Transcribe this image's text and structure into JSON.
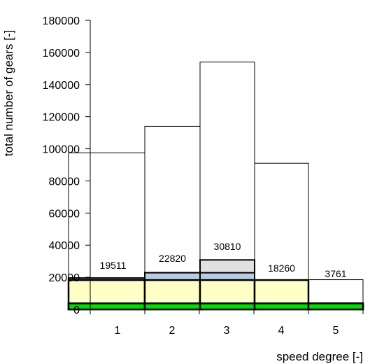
{
  "chart_data": {
    "type": "bar",
    "xlabel": "speed degree [-]",
    "ylabel": "total number of gears [-]",
    "ylim": [
      0,
      180000
    ],
    "y_ticks": [
      0,
      20000,
      40000,
      60000,
      80000,
      100000,
      120000,
      140000,
      160000,
      180000
    ],
    "categories": [
      "1",
      "2",
      "3",
      "4",
      "5"
    ],
    "grid": false,
    "bar_style": "overlapping histogram bars (no gaps), layered from tallest to shortest",
    "series": [
      {
        "values": [
          97500,
          114000,
          154000,
          91000,
          18500
        ],
        "color": "#ffffff"
      },
      {
        "values": [
          19511,
          22820,
          30810,
          18260,
          3761
        ],
        "color": "#e0e0e0"
      },
      {
        "values": [
          19511,
          22820,
          22820,
          18260,
          3761
        ],
        "color": "#b8cce4"
      },
      {
        "values": [
          18260,
          18260,
          18260,
          18260,
          3761
        ],
        "color": "#ffffc8"
      },
      {
        "values": [
          3761,
          3761,
          3761,
          3761,
          3761
        ],
        "color": "#00dd00"
      }
    ],
    "data_labels": [
      "19511",
      "22820",
      "30810",
      "18260",
      "3761"
    ]
  }
}
